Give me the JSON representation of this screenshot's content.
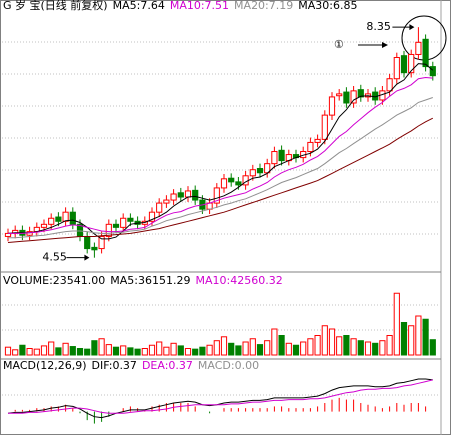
{
  "chart_data": [
    {
      "type": "candlestick",
      "legend": [
        {
          "text": "G 岁 宝(日线 前复权)",
          "color": "#000000"
        },
        {
          "text": "MA5:7.64",
          "color": "#000000"
        },
        {
          "text": "MA10:7.51",
          "color": "#d000d0"
        },
        {
          "text": "MA20:7.19",
          "color": "#909090"
        },
        {
          "text": "MA30:6.85",
          "color": "#000000"
        }
      ],
      "annotations": [
        {
          "text": "8.35"
        },
        {
          "text": "4.55"
        },
        {
          "text": "①"
        }
      ],
      "up_color": "#ff0000",
      "down_color": "#008000",
      "ylim": [
        4.38,
        8.6
      ],
      "grid": true,
      "open": [
        4.9,
        4.95,
        5.0,
        4.92,
        4.98,
        5.05,
        5.1,
        5.22,
        5.15,
        5.3,
        5.1,
        4.9,
        4.72,
        4.7,
        4.9,
        5.1,
        5.05,
        5.2,
        5.15,
        5.1,
        5.15,
        5.3,
        5.45,
        5.5,
        5.62,
        5.55,
        5.66,
        5.5,
        5.35,
        5.45,
        5.7,
        5.86,
        5.8,
        5.75,
        5.9,
        6.02,
        5.95,
        6.1,
        6.32,
        6.15,
        6.25,
        6.2,
        6.3,
        6.45,
        6.5,
        6.9,
        7.22,
        7.28,
        7.1,
        7.32,
        7.2,
        7.28,
        7.15,
        7.3,
        7.5,
        7.88,
        7.6,
        7.9,
        8.15,
        7.7
      ],
      "high": [
        5.03,
        5.08,
        5.08,
        5.06,
        5.13,
        5.18,
        5.28,
        5.3,
        5.38,
        5.38,
        5.18,
        4.98,
        4.8,
        4.98,
        5.18,
        5.18,
        5.28,
        5.28,
        5.23,
        5.23,
        5.38,
        5.53,
        5.58,
        5.68,
        5.7,
        5.73,
        5.74,
        5.58,
        5.53,
        5.78,
        5.93,
        5.94,
        5.88,
        5.98,
        6.08,
        6.1,
        6.18,
        6.38,
        6.4,
        6.33,
        6.33,
        6.38,
        6.53,
        6.58,
        6.98,
        7.28,
        7.33,
        7.36,
        7.38,
        7.4,
        7.33,
        7.36,
        7.38,
        7.58,
        7.93,
        7.96,
        7.98,
        8.35,
        8.23,
        7.78
      ],
      "low": [
        4.82,
        4.87,
        4.84,
        4.84,
        4.9,
        4.97,
        5.02,
        5.07,
        5.07,
        5.02,
        4.82,
        4.62,
        4.55,
        4.62,
        4.82,
        4.97,
        4.97,
        5.07,
        5.02,
        5.02,
        5.07,
        5.22,
        5.37,
        5.42,
        5.47,
        5.47,
        5.42,
        5.27,
        5.27,
        5.37,
        5.62,
        5.72,
        5.67,
        5.67,
        5.82,
        5.87,
        5.87,
        6.02,
        6.07,
        6.07,
        6.12,
        6.12,
        6.22,
        6.37,
        6.42,
        6.82,
        7.14,
        7.02,
        7.02,
        7.12,
        7.12,
        7.07,
        7.07,
        7.22,
        7.42,
        7.52,
        7.52,
        7.82,
        7.62,
        7.47
      ],
      "close": [
        4.95,
        5.0,
        4.92,
        4.98,
        5.05,
        5.1,
        5.2,
        5.15,
        5.3,
        5.1,
        4.9,
        4.7,
        4.68,
        4.9,
        5.1,
        5.05,
        5.2,
        5.15,
        5.1,
        5.15,
        5.3,
        5.45,
        5.5,
        5.6,
        5.55,
        5.65,
        5.5,
        5.35,
        5.45,
        5.7,
        5.85,
        5.8,
        5.75,
        5.9,
        6.0,
        5.95,
        6.1,
        6.3,
        6.15,
        6.25,
        6.2,
        6.3,
        6.45,
        6.5,
        6.9,
        7.2,
        7.25,
        7.1,
        7.3,
        7.2,
        7.25,
        7.15,
        7.3,
        7.5,
        7.85,
        7.6,
        7.9,
        8.1,
        7.7,
        7.55
      ],
      "series": [
        {
          "color": "#000000",
          "values": [
            4.95,
            4.96,
            4.96,
            4.96,
            4.98,
            5.01,
            5.05,
            5.1,
            5.16,
            5.17,
            5.13,
            5.05,
            4.94,
            4.86,
            4.86,
            4.89,
            4.99,
            5.1,
            5.12,
            5.13,
            5.18,
            5.23,
            5.3,
            5.4,
            5.48,
            5.55,
            5.56,
            5.53,
            5.5,
            5.53,
            5.57,
            5.63,
            5.71,
            5.8,
            5.86,
            5.88,
            5.94,
            6.05,
            6.1,
            6.15,
            6.2,
            6.24,
            6.27,
            6.34,
            6.47,
            6.67,
            6.87,
            6.99,
            7.15,
            7.21,
            7.22,
            7.2,
            7.24,
            7.28,
            7.41,
            7.48,
            7.63,
            7.75,
            7.74,
            7.64
          ]
        },
        {
          "color": "#d000d0",
          "values": [
            4.95,
            4.95,
            4.95,
            4.96,
            4.97,
            4.99,
            5.01,
            5.04,
            5.07,
            5.09,
            5.08,
            5.05,
            5.02,
            4.99,
            4.98,
            4.98,
            4.99,
            5.02,
            5.03,
            5.05,
            5.12,
            5.19,
            5.25,
            5.29,
            5.31,
            5.36,
            5.4,
            5.42,
            5.45,
            5.49,
            5.53,
            5.56,
            5.59,
            5.62,
            5.68,
            5.73,
            5.79,
            5.88,
            5.95,
            6.0,
            6.04,
            6.09,
            6.16,
            6.22,
            6.31,
            6.43,
            6.55,
            6.63,
            6.74,
            6.84,
            6.94,
            7.03,
            7.11,
            7.21,
            7.3,
            7.34,
            7.4,
            7.5,
            7.52,
            7.51
          ]
        },
        {
          "color": "#909090",
          "values": [
            4.88,
            4.88,
            4.89,
            4.9,
            4.91,
            4.92,
            4.94,
            4.96,
            4.98,
            4.99,
            4.99,
            4.98,
            4.96,
            4.95,
            4.95,
            4.96,
            4.97,
            4.99,
            5.0,
            5.02,
            5.07,
            5.11,
            5.16,
            5.19,
            5.22,
            5.26,
            5.29,
            5.32,
            5.35,
            5.38,
            5.42,
            5.45,
            5.49,
            5.52,
            5.57,
            5.62,
            5.67,
            5.73,
            5.79,
            5.83,
            5.87,
            5.92,
            5.97,
            6.02,
            6.1,
            6.19,
            6.28,
            6.35,
            6.43,
            6.51,
            6.59,
            6.67,
            6.74,
            6.82,
            6.9,
            6.96,
            7.02,
            7.11,
            7.15,
            7.19
          ]
        },
        {
          "color": "#800000",
          "values": [
            4.8,
            4.81,
            4.82,
            4.83,
            4.84,
            4.85,
            4.86,
            4.87,
            4.88,
            4.89,
            4.9,
            4.9,
            4.9,
            4.91,
            4.92,
            4.93,
            4.94,
            4.95,
            4.97,
            4.99,
            5.01,
            5.03,
            5.06,
            5.09,
            5.12,
            5.15,
            5.18,
            5.21,
            5.24,
            5.27,
            5.3,
            5.34,
            5.38,
            5.42,
            5.46,
            5.5,
            5.54,
            5.58,
            5.62,
            5.66,
            5.7,
            5.74,
            5.78,
            5.82,
            5.88,
            5.94,
            6.0,
            6.06,
            6.12,
            6.18,
            6.24,
            6.3,
            6.36,
            6.42,
            6.5,
            6.57,
            6.64,
            6.72,
            6.79,
            6.85
          ]
        }
      ]
    },
    {
      "type": "bar",
      "legend": [
        {
          "text": "VOLUME:23541.00",
          "color": "#000000"
        },
        {
          "text": "MA5:36151.29",
          "color": "#000000"
        },
        {
          "text": "MA10:42560.32",
          "color": "#d000d0"
        }
      ],
      "ylim": [
        0,
        100000
      ],
      "values": [
        12000,
        8000,
        15000,
        10000,
        9000,
        14000,
        20000,
        11000,
        18000,
        13000,
        10000,
        9000,
        22000,
        25000,
        16000,
        12000,
        14000,
        11000,
        9000,
        10000,
        15000,
        20000,
        12000,
        18000,
        14000,
        10000,
        9000,
        12000,
        15000,
        22000,
        28000,
        18000,
        14000,
        20000,
        25000,
        16000,
        22000,
        40000,
        30000,
        18000,
        15000,
        20000,
        25000,
        30000,
        45000,
        40000,
        28000,
        30000,
        25000,
        22000,
        20000,
        18000,
        22000,
        30000,
        95000,
        50000,
        45000,
        60000,
        55000,
        23541
      ]
    },
    {
      "type": "line",
      "legend": [
        {
          "text": "MACD(12,26,9)",
          "color": "#000000"
        },
        {
          "text": "DIF:0.37",
          "color": "#000000"
        },
        {
          "text": "DEA:0.37",
          "color": "#d000d0"
        },
        {
          "text": "MACD:0.00",
          "color": "#909090"
        }
      ],
      "ylim": [
        -0.25,
        0.45
      ],
      "histogram": [
        0,
        0.02,
        0.02,
        0.02,
        0.04,
        0.04,
        0.06,
        0.06,
        0.08,
        0.04,
        -0.02,
        -0.1,
        -0.14,
        -0.12,
        -0.06,
        0,
        0.04,
        0.06,
        0.04,
        0.02,
        0.06,
        0.08,
        0.1,
        0.1,
        0.1,
        0.1,
        0.06,
        0,
        -0.02,
        0,
        0.04,
        0.04,
        0.04,
        0.04,
        0.04,
        0.04,
        0.04,
        0.06,
        0.06,
        0.04,
        0.04,
        0.04,
        0.04,
        0.06,
        0.1,
        0.14,
        0.16,
        0.14,
        0.14,
        0.1,
        0.08,
        0.06,
        0.04,
        0.06,
        0.1,
        0.08,
        0.1,
        0.1,
        0.06,
        0.0
      ],
      "series": [
        {
          "color": "#000000",
          "values": [
            -0.02,
            -0.01,
            -0.01,
            0,
            0.01,
            0.02,
            0.04,
            0.05,
            0.07,
            0.06,
            0.03,
            -0.02,
            -0.06,
            -0.07,
            -0.05,
            -0.02,
            0.0,
            0.02,
            0.02,
            0.02,
            0.04,
            0.06,
            0.08,
            0.1,
            0.11,
            0.12,
            0.11,
            0.08,
            0.07,
            0.08,
            0.1,
            0.11,
            0.11,
            0.12,
            0.13,
            0.13,
            0.14,
            0.16,
            0.16,
            0.16,
            0.16,
            0.16,
            0.17,
            0.18,
            0.21,
            0.25,
            0.28,
            0.29,
            0.3,
            0.3,
            0.3,
            0.29,
            0.29,
            0.3,
            0.33,
            0.34,
            0.36,
            0.38,
            0.38,
            0.37
          ]
        },
        {
          "color": "#d000d0",
          "values": [
            -0.02,
            -0.02,
            -0.02,
            -0.01,
            -0.01,
            0,
            0.01,
            0.02,
            0.03,
            0.04,
            0.04,
            0.03,
            0.01,
            -0.01,
            -0.02,
            -0.02,
            -0.02,
            -0.01,
            0,
            0.01,
            0.01,
            0.02,
            0.03,
            0.05,
            0.06,
            0.07,
            0.08,
            0.08,
            0.08,
            0.08,
            0.08,
            0.09,
            0.09,
            0.1,
            0.11,
            0.11,
            0.12,
            0.13,
            0.13,
            0.14,
            0.14,
            0.14,
            0.15,
            0.15,
            0.16,
            0.18,
            0.2,
            0.22,
            0.23,
            0.25,
            0.26,
            0.26,
            0.27,
            0.27,
            0.28,
            0.3,
            0.31,
            0.33,
            0.35,
            0.37
          ]
        }
      ]
    }
  ]
}
